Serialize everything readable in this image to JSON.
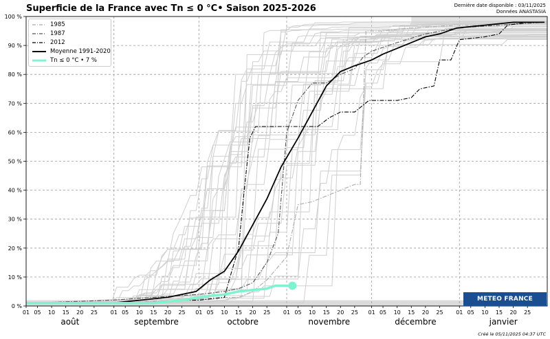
{
  "header": {
    "title": "Superficie de la France avec Tn ≤ 0 °C• Saison 2025-2026",
    "last_date": "Dernière date disponible : 03/11/2025",
    "source": "Données ANASTASIA",
    "created": "Créé le 05/11/2025 04:37 UTC",
    "logo_text": "METEO FRANCE"
  },
  "chart_data": {
    "type": "line",
    "title": "Superficie de la France avec Tn ≤ 0 °C• Saison 2025-2026",
    "xlabel": "",
    "ylabel": "",
    "ylim": [
      0,
      100
    ],
    "y_ticks": [
      "0 %",
      "10 %",
      "20 %",
      "30 %",
      "40 %",
      "50 %",
      "60 %",
      "70 %",
      "80 %",
      "90 %",
      "100 %"
    ],
    "x_day_ticks": [
      "01",
      "05",
      "10",
      "15",
      "20",
      "25"
    ],
    "months": [
      "août",
      "septembre",
      "octobre",
      "novembre",
      "décembre",
      "janvier"
    ],
    "grid": true,
    "legend_position": "top-left",
    "series": [
      {
        "name": "1985",
        "style": "dashdot",
        "color": "#aaaaaa",
        "points": [
          [
            "2025-08-01",
            1
          ],
          [
            "2025-09-01",
            1
          ],
          [
            "2025-09-25",
            2
          ],
          [
            "2025-10-10",
            3
          ],
          [
            "2025-10-15",
            3
          ],
          [
            "2025-10-20",
            5
          ],
          [
            "2025-10-25",
            9
          ],
          [
            "2025-11-01",
            17
          ],
          [
            "2025-11-05",
            35
          ],
          [
            "2025-11-10",
            36
          ],
          [
            "2025-11-20",
            40
          ],
          [
            "2025-11-25",
            42
          ],
          [
            "2025-11-27",
            42
          ],
          [
            "2025-11-29",
            95
          ],
          [
            "2025-12-05",
            95
          ],
          [
            "2025-12-15",
            96
          ],
          [
            "2025-12-31",
            97
          ],
          [
            "2026-01-15",
            97
          ],
          [
            "2026-01-31",
            98
          ]
        ]
      },
      {
        "name": "1987",
        "style": "dashdot",
        "color": "#555555",
        "points": [
          [
            "2025-08-01",
            1
          ],
          [
            "2025-08-31",
            2
          ],
          [
            "2025-09-15",
            3
          ],
          [
            "2025-10-01",
            4
          ],
          [
            "2025-10-10",
            5
          ],
          [
            "2025-10-15",
            6
          ],
          [
            "2025-10-20",
            8
          ],
          [
            "2025-10-25",
            15
          ],
          [
            "2025-10-29",
            25
          ],
          [
            "2025-11-01",
            60
          ],
          [
            "2025-11-05",
            71
          ],
          [
            "2025-11-10",
            77
          ],
          [
            "2025-11-15",
            77
          ],
          [
            "2025-11-20",
            80
          ],
          [
            "2025-11-25",
            82
          ],
          [
            "2025-11-28",
            86
          ],
          [
            "2025-12-01",
            88
          ],
          [
            "2025-12-10",
            91
          ],
          [
            "2025-12-20",
            94
          ],
          [
            "2025-12-31",
            96
          ],
          [
            "2026-01-15",
            97
          ],
          [
            "2026-01-31",
            98
          ]
        ]
      },
      {
        "name": "2012",
        "style": "dashdot",
        "color": "#000000",
        "points": [
          [
            "2025-08-01",
            1
          ],
          [
            "2025-08-31",
            1
          ],
          [
            "2025-09-15",
            1
          ],
          [
            "2025-09-25",
            2
          ],
          [
            "2025-10-01",
            2
          ],
          [
            "2025-10-10",
            3
          ],
          [
            "2025-10-12",
            10
          ],
          [
            "2025-10-15",
            20
          ],
          [
            "2025-10-17",
            40
          ],
          [
            "2025-10-19",
            58
          ],
          [
            "2025-10-21",
            62
          ],
          [
            "2025-11-05",
            62
          ],
          [
            "2025-11-12",
            62
          ],
          [
            "2025-11-16",
            65
          ],
          [
            "2025-11-20",
            67
          ],
          [
            "2025-11-25",
            67
          ],
          [
            "2025-11-30",
            71
          ],
          [
            "2025-12-10",
            71
          ],
          [
            "2025-12-15",
            72
          ],
          [
            "2025-12-18",
            75
          ],
          [
            "2025-12-23",
            76
          ],
          [
            "2025-12-25",
            85
          ],
          [
            "2025-12-29",
            85
          ],
          [
            "2026-01-01",
            92
          ],
          [
            "2026-01-10",
            93
          ],
          [
            "2026-01-15",
            94
          ],
          [
            "2026-01-18",
            97
          ],
          [
            "2026-01-25",
            98
          ],
          [
            "2026-01-31",
            98
          ]
        ]
      },
      {
        "name": "Moyenne 1991-2020",
        "style": "solid",
        "color": "#000000",
        "points": [
          [
            "2025-08-01",
            1
          ],
          [
            "2025-08-31",
            1
          ],
          [
            "2025-09-10",
            2
          ],
          [
            "2025-09-20",
            3
          ],
          [
            "2025-09-30",
            5
          ],
          [
            "2025-10-05",
            9
          ],
          [
            "2025-10-10",
            12
          ],
          [
            "2025-10-15",
            19
          ],
          [
            "2025-10-20",
            28
          ],
          [
            "2025-10-25",
            37
          ],
          [
            "2025-10-30",
            48
          ],
          [
            "2025-11-05",
            58
          ],
          [
            "2025-11-10",
            67
          ],
          [
            "2025-11-15",
            76
          ],
          [
            "2025-11-20",
            81
          ],
          [
            "2025-11-25",
            83
          ],
          [
            "2025-12-01",
            85
          ],
          [
            "2025-12-05",
            87
          ],
          [
            "2025-12-10",
            89
          ],
          [
            "2025-12-15",
            91
          ],
          [
            "2025-12-20",
            93
          ],
          [
            "2025-12-25",
            94
          ],
          [
            "2025-12-31",
            96
          ],
          [
            "2026-01-10",
            97
          ],
          [
            "2026-01-20",
            98
          ],
          [
            "2026-01-31",
            98
          ]
        ]
      },
      {
        "name": "Tn ≤ 0 °C • 7 %",
        "style": "solid",
        "color": "#7ff2cf",
        "points": [
          [
            "2025-08-01",
            1
          ],
          [
            "2025-08-31",
            1
          ],
          [
            "2025-09-15",
            1
          ],
          [
            "2025-09-25",
            2
          ],
          [
            "2025-10-01",
            3
          ],
          [
            "2025-10-05",
            3.5
          ],
          [
            "2025-10-10",
            4
          ],
          [
            "2025-10-15",
            5
          ],
          [
            "2025-10-20",
            5.5
          ],
          [
            "2025-10-25",
            6
          ],
          [
            "2025-10-28",
            7
          ],
          [
            "2025-11-03",
            7
          ]
        ]
      }
    ]
  }
}
